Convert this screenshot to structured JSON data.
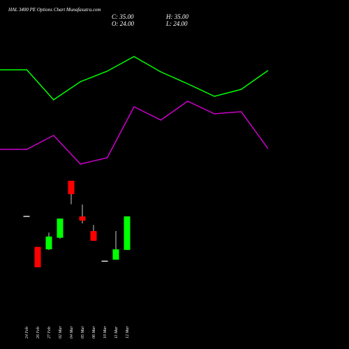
{
  "chart_data": [
    {
      "type": "candlestick",
      "title": "HAL 3400 PE Options Chart Munafasutra.com",
      "ohlc_info": [
        "C: 35.00",
        "H: 35.00",
        "O: 24.00",
        "L: 24.00"
      ],
      "categories": [
        "24 Feb",
        "26 Feb",
        "27 Feb",
        "02 Mar",
        "04 Mar",
        "05 Mar",
        "06 Mar",
        "10 Mar",
        "11 Mar",
        "12 Mar"
      ],
      "open": [
        35,
        25,
        24.2,
        28,
        46.7,
        35,
        30.2,
        20.3,
        20.8,
        24
      ],
      "high": [
        35,
        25,
        29.7,
        34.3,
        46.7,
        38.9,
        32.2,
        20.3,
        30.2,
        35
      ],
      "low": [
        35,
        18.3,
        24,
        27.7,
        39,
        32.7,
        27,
        20.3,
        20.8,
        24
      ],
      "close": [
        35,
        18.3,
        28.4,
        34.3,
        42.3,
        33.6,
        27,
        20.3,
        24.2,
        35
      ],
      "up_color": "#00ff00",
      "down_color": "#ff0000",
      "flat_color": "#dddddd",
      "ylim": [
        -8.5,
        106
      ]
    },
    {
      "type": "line",
      "x": [
        0,
        1,
        2,
        3,
        4,
        5,
        6,
        7,
        8,
        9,
        10
      ],
      "xlim": [
        0,
        10
      ],
      "series": [
        {
          "color": "#00ff00",
          "values": [
            80,
            80,
            71.4,
            76.6,
            79.6,
            83.8,
            79.4,
            76,
            72.4,
            74.4,
            79.8
          ]
        },
        {
          "color": "#cc00cc",
          "values": [
            57.2,
            57.2,
            61.2,
            53,
            54.8,
            69.4,
            65.6,
            71,
            67.4,
            68,
            57.4
          ]
        }
      ],
      "ylim": [
        0,
        100
      ]
    }
  ]
}
